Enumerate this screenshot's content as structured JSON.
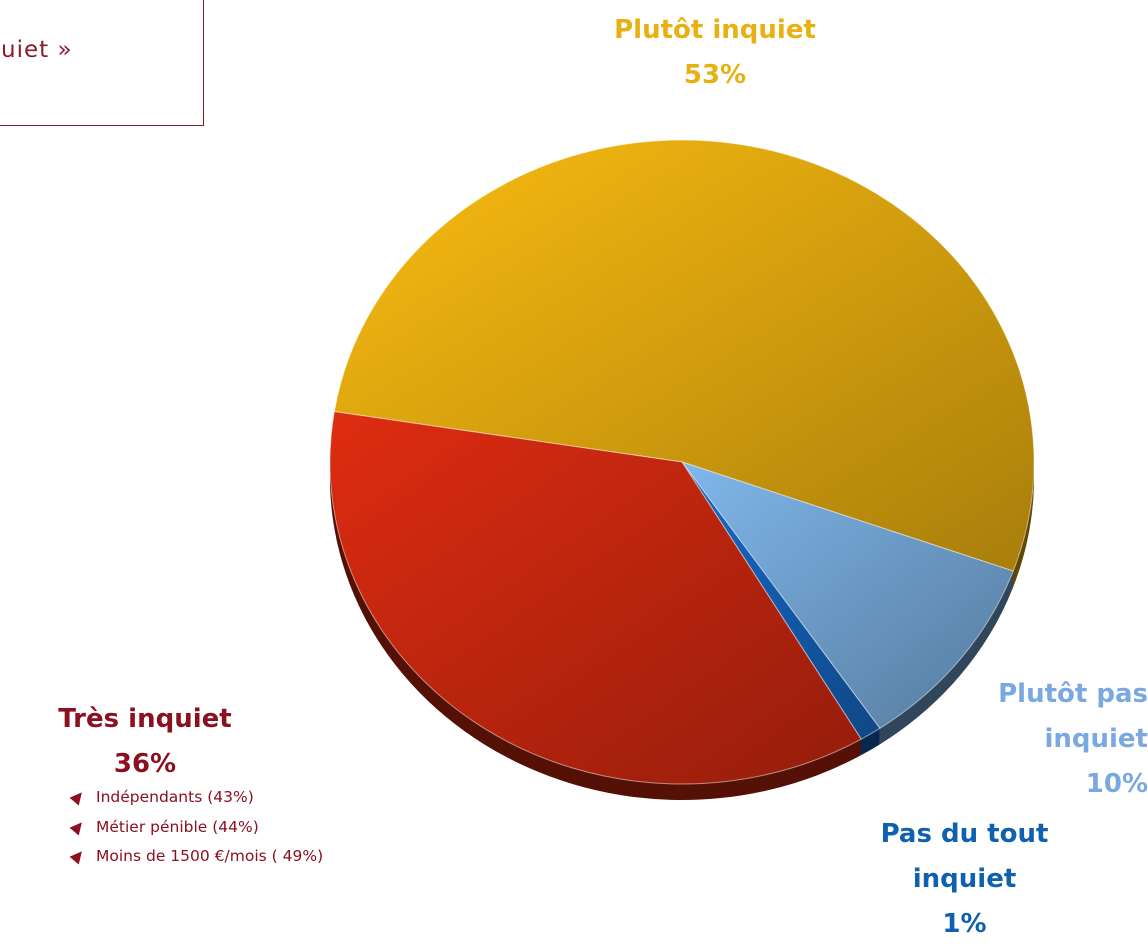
{
  "chart_data": {
    "type": "pie",
    "title": "uiet »",
    "categories": [
      "Plutôt inquiet",
      "Plutôt pas inquiet",
      "Pas du tout inquiet",
      "Très inquiet"
    ],
    "values": [
      53,
      10,
      1,
      36
    ],
    "value_labels": [
      "53%",
      "10%",
      "1%",
      "36%"
    ],
    "colors": [
      "#f0b410",
      "#7aaee0",
      "#1565c0",
      "#d42a10"
    ],
    "annotations": [
      "Indépendants  (43%)",
      "Métier pénible (44%)",
      "Moins de 1500 €/mois ( 49%)"
    ]
  }
}
